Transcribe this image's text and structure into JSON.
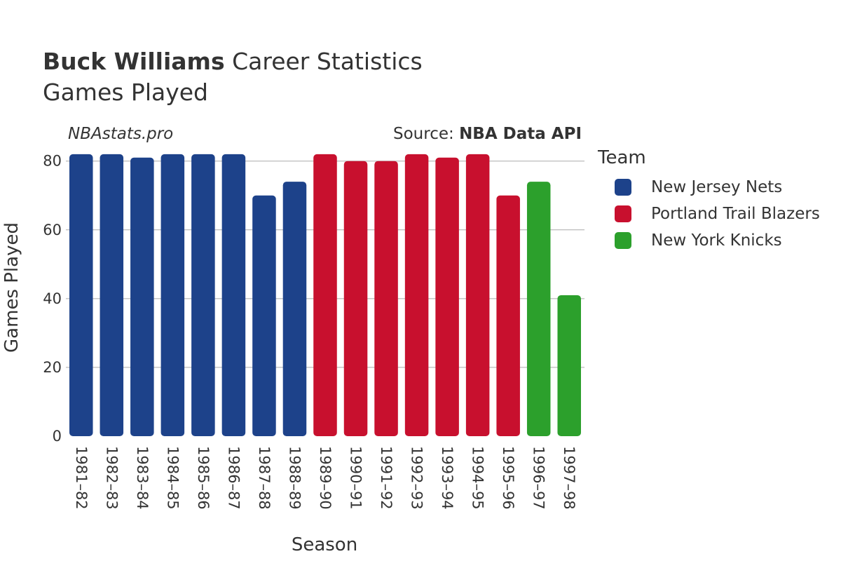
{
  "header": {
    "player_name": "Buck Williams",
    "title_suffix": "Career Statistics",
    "subtitle": "Games Played"
  },
  "watermark": "NBAstats.pro",
  "source": {
    "prefix": "Source: ",
    "name": "NBA Data API"
  },
  "legend": {
    "title": "Team",
    "items": [
      {
        "label": "New Jersey Nets",
        "color": "#1d428a"
      },
      {
        "label": "Portland Trail Blazers",
        "color": "#c8102e"
      },
      {
        "label": "New York Knicks",
        "color": "#2ca02c"
      }
    ]
  },
  "chart_data": {
    "type": "bar",
    "title": "Buck Williams Career Statistics",
    "subtitle": "Games Played",
    "xlabel": "Season",
    "ylabel": "Games Played",
    "ylim": [
      0,
      83
    ],
    "yticks": [
      0,
      20,
      40,
      60,
      80
    ],
    "grid": true,
    "legend_position": "right",
    "categories": [
      "1981–82",
      "1982–83",
      "1983–84",
      "1984–85",
      "1985–86",
      "1986–87",
      "1987–88",
      "1988–89",
      "1989–90",
      "1990–91",
      "1991–92",
      "1992–93",
      "1993–94",
      "1994–95",
      "1995–96",
      "1996–97",
      "1997–98"
    ],
    "values": [
      82,
      82,
      81,
      82,
      82,
      82,
      70,
      74,
      82,
      80,
      80,
      82,
      81,
      82,
      70,
      74,
      41
    ],
    "teams": [
      "New Jersey Nets",
      "New Jersey Nets",
      "New Jersey Nets",
      "New Jersey Nets",
      "New Jersey Nets",
      "New Jersey Nets",
      "New Jersey Nets",
      "New Jersey Nets",
      "Portland Trail Blazers",
      "Portland Trail Blazers",
      "Portland Trail Blazers",
      "Portland Trail Blazers",
      "Portland Trail Blazers",
      "Portland Trail Blazers",
      "Portland Trail Blazers",
      "New York Knicks",
      "New York Knicks"
    ]
  }
}
